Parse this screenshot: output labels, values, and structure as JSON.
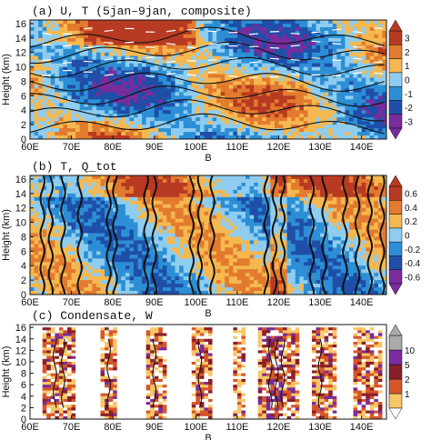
{
  "chart_data": [
    {
      "type": "heatmap",
      "title": "(a) U, T (5jan–9jan, composite)",
      "xlabel": "B",
      "ylabel": "Height (km)",
      "x_ticks": [
        "60E",
        "70E",
        "80E",
        "90E",
        "100E",
        "110E",
        "120E",
        "130E",
        "140E"
      ],
      "y_ticks": [
        "0",
        "2",
        "4",
        "6",
        "8",
        "10",
        "12",
        "14",
        "16"
      ],
      "xlim": [
        60,
        146
      ],
      "ylim": [
        0,
        16.5
      ],
      "colorbar_ticks": [
        "-3",
        "-2",
        "-1",
        "0",
        "1",
        "2",
        "3"
      ],
      "colorbar_levels": [
        -3.5,
        -2.5,
        -1.5,
        -0.5,
        0.5,
        1.5,
        2.5,
        3.5
      ],
      "colors": [
        "#7a2c9c",
        "#1f4fa8",
        "#2c8fd6",
        "#8fcdf0",
        "#f5b84f",
        "#e27a2f",
        "#b83a22"
      ],
      "overlays": [
        "temperature contours",
        "wind vectors"
      ]
    },
    {
      "type": "heatmap",
      "title": "(b) T, Q_tot",
      "xlabel": "B",
      "ylabel": "Height (km)",
      "x_ticks": [
        "60E",
        "70E",
        "80E",
        "90E",
        "100E",
        "110E",
        "120E",
        "130E",
        "140E"
      ],
      "y_ticks": [
        "0",
        "2",
        "4",
        "6",
        "8",
        "10",
        "12",
        "14",
        "16"
      ],
      "xlim": [
        60,
        146
      ],
      "ylim": [
        0,
        16.5
      ],
      "colorbar_ticks": [
        "-0.6",
        "-0.4",
        "-0.2",
        "0",
        "0.2",
        "0.4",
        "0.6"
      ],
      "colorbar_levels": [
        -0.7,
        -0.5,
        -0.3,
        -0.1,
        0.1,
        0.3,
        0.5,
        0.7
      ],
      "colors": [
        "#7a2c9c",
        "#1f4fa8",
        "#2c8fd6",
        "#8fcdf0",
        "#f5b84f",
        "#e27a2f",
        "#b83a22"
      ],
      "overlays": [
        "Q_tot contours"
      ]
    },
    {
      "type": "heatmap",
      "title": "(c) Condensate, W",
      "xlabel": "B",
      "ylabel": "Height (km)",
      "x_ticks": [
        "60E",
        "70E",
        "80E",
        "90E",
        "100E",
        "110E",
        "120E",
        "130E",
        "140E"
      ],
      "y_ticks": [
        "0",
        "2",
        "4",
        "6",
        "8",
        "10",
        "12",
        "14",
        "16"
      ],
      "xlim": [
        60,
        146
      ],
      "ylim": [
        0,
        16.5
      ],
      "colorbar_ticks": [
        "1",
        "2",
        "5",
        "10"
      ],
      "colors": [
        "#f7c766",
        "#d6562a",
        "#8a1e2a",
        "#7a2c9c",
        "#aaaaaa"
      ],
      "overlays": [
        "vertical velocity contours"
      ]
    }
  ],
  "palette": {
    "frame": "#111111",
    "grid": "#cccccc"
  }
}
